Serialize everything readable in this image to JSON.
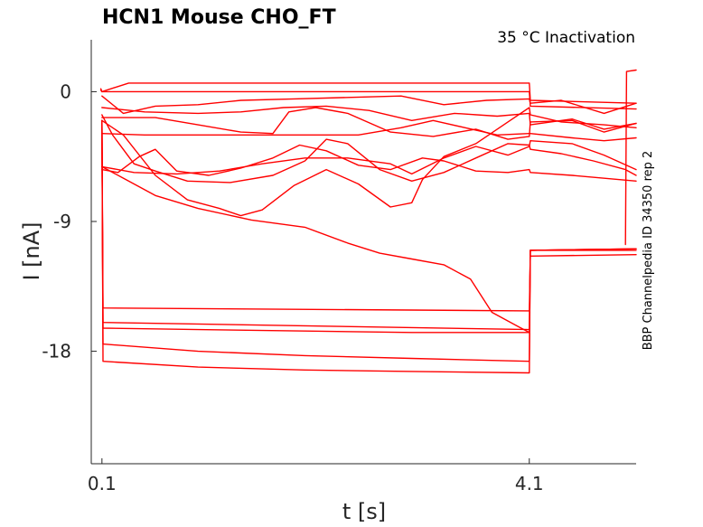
{
  "chart_data": {
    "type": "line",
    "title": "HCN1  Mouse  CHO_FT",
    "subtitle": "35 °C  Inactivation",
    "side_note": "BBP Channelpedia ID 34350 rep 2",
    "xlabel": "t [s]",
    "ylabel": "I [nA]",
    "xlim": [
      0.0,
      5.1
    ],
    "ylim": [
      -25.8,
      3.6
    ],
    "xticks": [
      0.1,
      4.1
    ],
    "xtick_labels": [
      "0.1",
      "4.1"
    ],
    "yticks": [
      0,
      -9,
      -18
    ],
    "ytick_labels": [
      "0",
      "-9",
      "-18"
    ],
    "grid": false,
    "legend": "none",
    "color": "#ff0000",
    "series": [
      {
        "x": [
          0.09,
          0.1,
          0.35,
          4.1,
          4.11,
          5.1
        ],
        "y": [
          0.1,
          0.0,
          0.6,
          0.6,
          -0.6,
          -0.8
        ]
      },
      {
        "x": [
          0.09,
          0.1,
          1.5,
          4.1,
          4.11,
          5.1
        ],
        "y": [
          0.2,
          0.0,
          0.0,
          0.0,
          -1.0,
          -1.2
        ]
      },
      {
        "x": [
          0.1,
          0.3,
          0.6,
          1.0,
          1.4,
          1.9,
          2.4,
          2.9,
          3.3,
          3.7,
          4.1,
          4.11,
          4.4,
          4.8,
          5.1
        ],
        "y": [
          -0.3,
          -1.5,
          -1.0,
          -0.9,
          -0.6,
          -0.5,
          -0.4,
          -0.3,
          -0.9,
          -0.6,
          -0.5,
          -0.8,
          -0.6,
          -1.5,
          -0.8
        ]
      },
      {
        "x": [
          0.1,
          0.5,
          1.0,
          1.4,
          1.8,
          2.2,
          2.6,
          3.0,
          3.4,
          3.8,
          4.1,
          4.11,
          4.5,
          4.8,
          5.1
        ],
        "y": [
          -1.1,
          -1.4,
          -1.5,
          -1.4,
          -1.1,
          -1.0,
          -1.3,
          -2.0,
          -1.5,
          -1.7,
          -1.5,
          -2.3,
          -1.9,
          -2.6,
          -2.2
        ]
      },
      {
        "x": [
          0.1,
          0.6,
          1.0,
          1.4,
          1.7,
          1.85,
          2.1,
          2.4,
          2.8,
          3.2,
          3.6,
          3.9,
          4.1,
          4.11,
          4.5,
          4.8,
          5.1
        ],
        "y": [
          -1.8,
          -1.8,
          -2.3,
          -2.8,
          -2.9,
          -1.4,
          -1.1,
          -1.5,
          -2.8,
          -3.1,
          -2.6,
          -3.3,
          -3.1,
          -2.1,
          -2.0,
          -2.8,
          -2.2
        ]
      },
      {
        "x": [
          0.1,
          0.5,
          1.0,
          1.5,
          2.0,
          2.5,
          2.9,
          3.2,
          3.5,
          3.8,
          4.1,
          4.11,
          4.5,
          4.8,
          5.1
        ],
        "y": [
          -2.9,
          -3.0,
          -3.0,
          -3.0,
          -3.0,
          -3.0,
          -2.5,
          -2.0,
          -2.5,
          -3.0,
          -2.9,
          -2.9,
          -3.2,
          -3.4,
          -3.2
        ]
      },
      {
        "x": [
          0.1,
          0.2,
          0.4,
          0.6,
          0.9,
          1.3,
          1.7,
          2.0,
          2.2,
          2.4,
          2.7,
          3.0,
          3.3,
          3.6,
          3.9,
          4.1,
          4.11,
          4.4,
          4.7,
          5.0,
          5.1
        ],
        "y": [
          -1.6,
          -3.0,
          -5.0,
          -5.5,
          -6.2,
          -6.3,
          -5.8,
          -4.8,
          -3.3,
          -3.6,
          -5.4,
          -6.2,
          -5.6,
          -4.6,
          -3.6,
          -3.7,
          -4.0,
          -4.3,
          -4.8,
          -5.4,
          -5.8
        ]
      },
      {
        "x": [
          0.1,
          0.25,
          0.45,
          0.6,
          0.8,
          1.1,
          1.4,
          1.7,
          1.95,
          2.2,
          2.5,
          2.8,
          3.1,
          3.3,
          3.6,
          3.9,
          4.1,
          4.11,
          4.5,
          5.1
        ],
        "y": [
          -5.4,
          -5.6,
          -4.5,
          -4.0,
          -5.5,
          -5.8,
          -5.3,
          -4.6,
          -3.7,
          -4.1,
          -5.1,
          -5.4,
          -4.6,
          -4.8,
          -5.5,
          -5.6,
          -5.4,
          -5.6,
          -5.8,
          -6.2
        ]
      },
      {
        "x": [
          0.1,
          0.4,
          0.8,
          1.2,
          1.6,
          2.0,
          2.4,
          2.8,
          3.0,
          3.3,
          3.6,
          3.9,
          4.1,
          4.11,
          4.5,
          4.8,
          5.1
        ],
        "y": [
          -5.2,
          -5.6,
          -5.7,
          -5.5,
          -5.0,
          -4.6,
          -4.6,
          -5.0,
          -5.7,
          -4.6,
          -3.8,
          -4.4,
          -3.8,
          -3.4,
          -3.6,
          -4.4,
          -5.4
        ]
      },
      {
        "x": [
          0.1,
          0.3,
          0.6,
          0.9,
          1.2,
          1.4,
          1.6,
          1.9,
          2.2,
          2.5,
          2.8,
          3.0,
          3.1,
          3.3,
          3.6,
          3.9,
          4.1,
          4.11,
          4.4,
          4.8,
          5.1
        ],
        "y": [
          -2.0,
          -3.0,
          -5.8,
          -7.5,
          -8.1,
          -8.6,
          -8.2,
          -6.5,
          -5.4,
          -6.4,
          -8.0,
          -7.7,
          -6.1,
          -4.5,
          -3.6,
          -2.1,
          -1.1,
          -1.6,
          -2.1,
          -2.3,
          -2.5
        ]
      },
      {
        "x": [
          0.1,
          0.3,
          0.6,
          1.0,
          1.5,
          2.0,
          2.4,
          2.7,
          3.0,
          3.3,
          3.55,
          3.75,
          4.0,
          4.1
        ],
        "y": [
          -5.2,
          -6.0,
          -7.2,
          -8.1,
          -8.9,
          -9.4,
          -10.5,
          -11.2,
          -11.6,
          -12.0,
          -13.0,
          -15.3,
          -16.3,
          -16.7
        ]
      },
      {
        "x": [
          0.1,
          0.11,
          4.1,
          4.11,
          5.1
        ],
        "y": [
          -2.0,
          -15.0,
          -15.2,
          -11.4,
          -11.3
        ]
      },
      {
        "x": [
          0.1,
          0.11,
          4.1,
          4.11,
          5.1
        ],
        "y": [
          -2.0,
          -16.0,
          -16.5,
          -11.0,
          -11.0
        ]
      },
      {
        "x": [
          0.1,
          0.11,
          1.0,
          2.0,
          3.0,
          4.1,
          4.11,
          5.1
        ],
        "y": [
          -2.0,
          -16.4,
          -16.5,
          -16.6,
          -16.7,
          -16.7,
          -11.0,
          -10.9
        ]
      },
      {
        "x": [
          0.1,
          0.11,
          1.0,
          2.0,
          3.0,
          4.1,
          4.11,
          5.1
        ],
        "y": [
          -2.0,
          -17.5,
          -18.0,
          -18.3,
          -18.5,
          -18.7,
          -11.0,
          -10.9
        ]
      },
      {
        "x": [
          0.1,
          0.11,
          1.0,
          2.0,
          3.0,
          4.1,
          4.11,
          5.1
        ],
        "y": [
          -2.0,
          -18.7,
          -19.1,
          -19.3,
          -19.4,
          -19.5,
          -11.0,
          -10.9
        ]
      },
      {
        "x": [
          5.0,
          5.01,
          5.1
        ],
        "y": [
          -10.6,
          1.4,
          1.5
        ]
      }
    ]
  }
}
